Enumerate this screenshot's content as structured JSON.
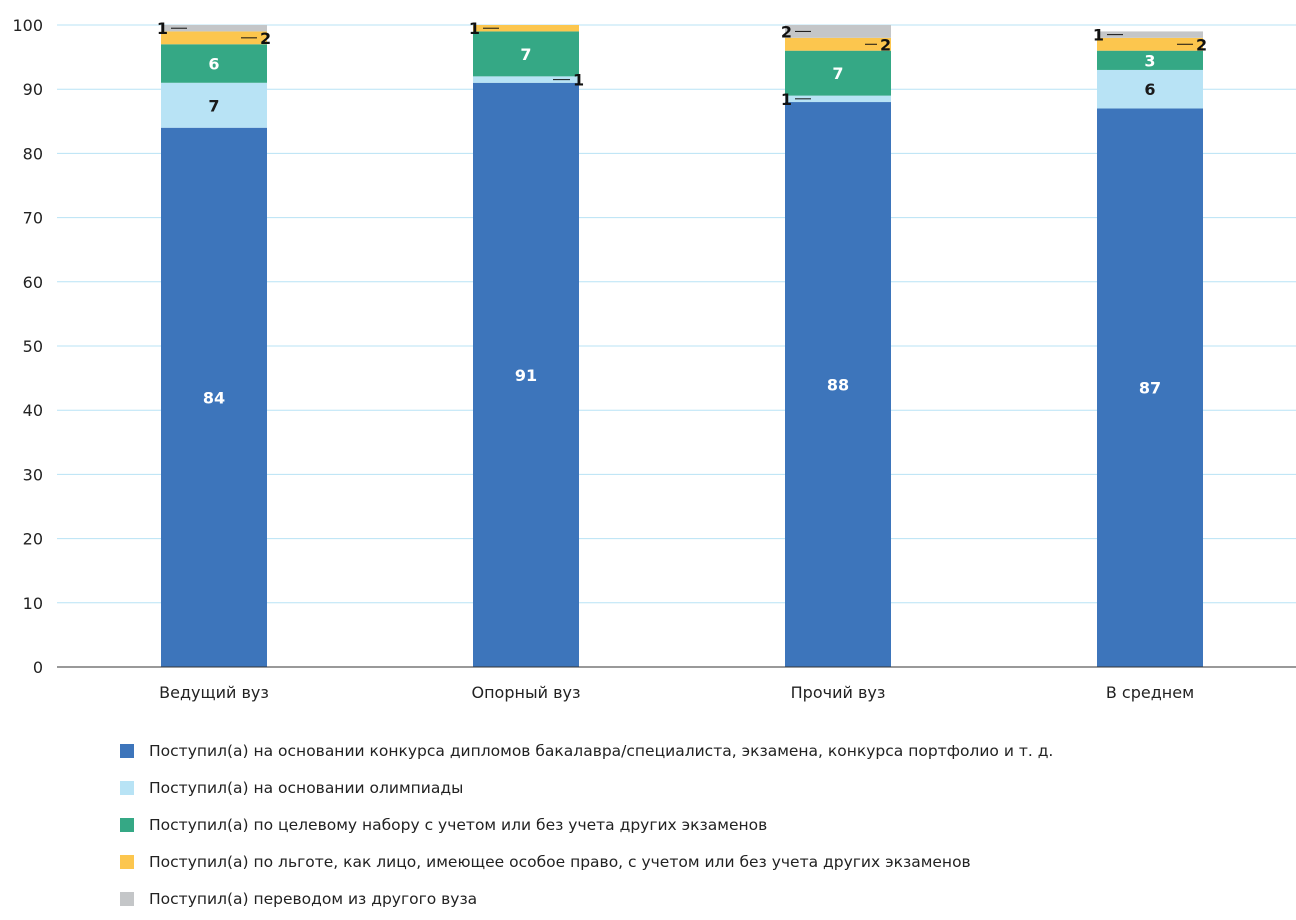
{
  "chart_data": {
    "type": "bar",
    "stacked": true,
    "title": "",
    "xlabel": "",
    "ylabel": "",
    "ylim": [
      0,
      100
    ],
    "yticks": [
      0,
      10,
      20,
      30,
      40,
      50,
      60,
      70,
      80,
      90,
      100
    ],
    "grid": true,
    "legend_position": "bottom",
    "categories": [
      "Ведущий вуз",
      "Опорный вуз",
      "Прочий вуз",
      "В среднем"
    ],
    "series": [
      {
        "name": "Поступил(а) на основании конкурса дипломов бакалавра/специалиста, экзамена, конкурса портфолио и т. д.",
        "color": "#3d75bb",
        "values": [
          84,
          91,
          88,
          87
        ]
      },
      {
        "name": "Поступил(а) на основании олимпиады",
        "color": "#b8e3f5",
        "values": [
          7,
          1,
          1,
          6
        ]
      },
      {
        "name": "Поступил(а) по целевому набору с учетом или без учета других экзаменов",
        "color": "#35a885",
        "values": [
          6,
          7,
          7,
          3
        ]
      },
      {
        "name": "Поступил(а) по льготе, как лицо, имеющее особое право, с учетом или без учета других экзаменов",
        "color": "#fcc64e",
        "values": [
          2,
          1,
          2,
          2
        ]
      },
      {
        "name": "Поступил(а) переводом из другого вуза",
        "color": "#c4c6c8",
        "values": [
          1,
          0,
          2,
          1
        ]
      }
    ]
  }
}
